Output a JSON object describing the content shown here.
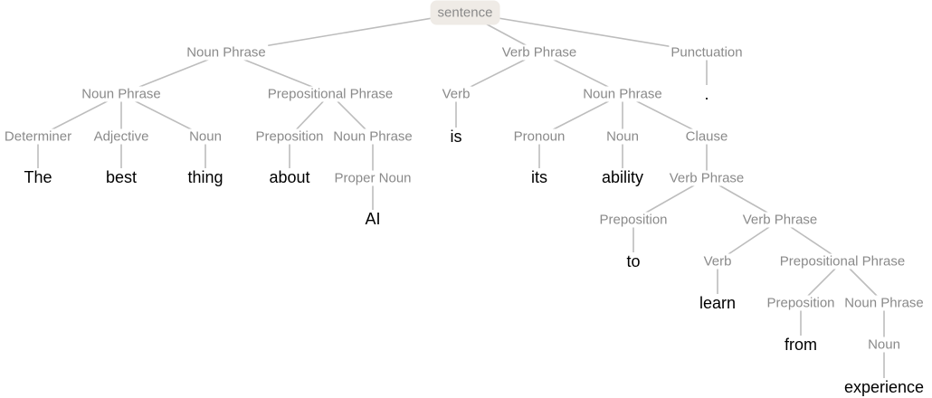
{
  "tree": {
    "root": "sentence",
    "nodes": [
      {
        "id": "s",
        "label": "sentence",
        "kind": "root"
      },
      {
        "id": "np1",
        "label": "Noun Phrase",
        "parent": "s"
      },
      {
        "id": "vp1",
        "label": "Verb Phrase",
        "parent": "s"
      },
      {
        "id": "pu1",
        "label": "Punctuation",
        "parent": "s"
      },
      {
        "id": "np2",
        "label": "Noun Phrase",
        "parent": "np1"
      },
      {
        "id": "pp1",
        "label": "Prepositional Phrase",
        "parent": "np1"
      },
      {
        "id": "det",
        "label": "Determiner",
        "parent": "np2"
      },
      {
        "id": "adj",
        "label": "Adjective",
        "parent": "np2"
      },
      {
        "id": "n1",
        "label": "Noun",
        "parent": "np2"
      },
      {
        "id": "w_the",
        "label": "The",
        "kind": "word",
        "parent": "det"
      },
      {
        "id": "w_best",
        "label": "best",
        "kind": "word",
        "parent": "adj"
      },
      {
        "id": "w_thing",
        "label": "thing",
        "kind": "word",
        "parent": "n1"
      },
      {
        "id": "prep1",
        "label": "Preposition",
        "parent": "pp1"
      },
      {
        "id": "np3",
        "label": "Noun Phrase",
        "parent": "pp1"
      },
      {
        "id": "w_about",
        "label": "about",
        "kind": "word",
        "parent": "prep1"
      },
      {
        "id": "pn",
        "label": "Proper Noun",
        "parent": "np3"
      },
      {
        "id": "w_ai",
        "label": "AI",
        "kind": "word",
        "parent": "pn"
      },
      {
        "id": "v1",
        "label": "Verb",
        "parent": "vp1"
      },
      {
        "id": "np4",
        "label": "Noun Phrase",
        "parent": "vp1"
      },
      {
        "id": "w_is",
        "label": "is",
        "kind": "word",
        "parent": "v1"
      },
      {
        "id": "pro",
        "label": "Pronoun",
        "parent": "np4"
      },
      {
        "id": "n2",
        "label": "Noun",
        "parent": "np4"
      },
      {
        "id": "cl",
        "label": "Clause",
        "parent": "np4"
      },
      {
        "id": "w_its",
        "label": "its",
        "kind": "word",
        "parent": "pro"
      },
      {
        "id": "w_ability",
        "label": "ability",
        "kind": "word",
        "parent": "n2"
      },
      {
        "id": "vp2",
        "label": "Verb Phrase",
        "parent": "cl"
      },
      {
        "id": "prep2",
        "label": "Preposition",
        "parent": "vp2"
      },
      {
        "id": "vp3",
        "label": "Verb Phrase",
        "parent": "vp2"
      },
      {
        "id": "w_to",
        "label": "to",
        "kind": "word",
        "parent": "prep2"
      },
      {
        "id": "v2",
        "label": "Verb",
        "parent": "vp3"
      },
      {
        "id": "pp2",
        "label": "Prepositional Phrase",
        "parent": "vp3"
      },
      {
        "id": "w_learn",
        "label": "learn",
        "kind": "word",
        "parent": "v2"
      },
      {
        "id": "prep3",
        "label": "Preposition",
        "parent": "pp2"
      },
      {
        "id": "np5",
        "label": "Noun Phrase",
        "parent": "pp2"
      },
      {
        "id": "w_from",
        "label": "from",
        "kind": "word",
        "parent": "prep3"
      },
      {
        "id": "n3",
        "label": "Noun",
        "parent": "np5"
      },
      {
        "id": "w_experience",
        "label": "experience",
        "kind": "word",
        "parent": "n3"
      },
      {
        "id": "w_period",
        "label": ".",
        "kind": "word",
        "parent": "pu1"
      }
    ]
  }
}
